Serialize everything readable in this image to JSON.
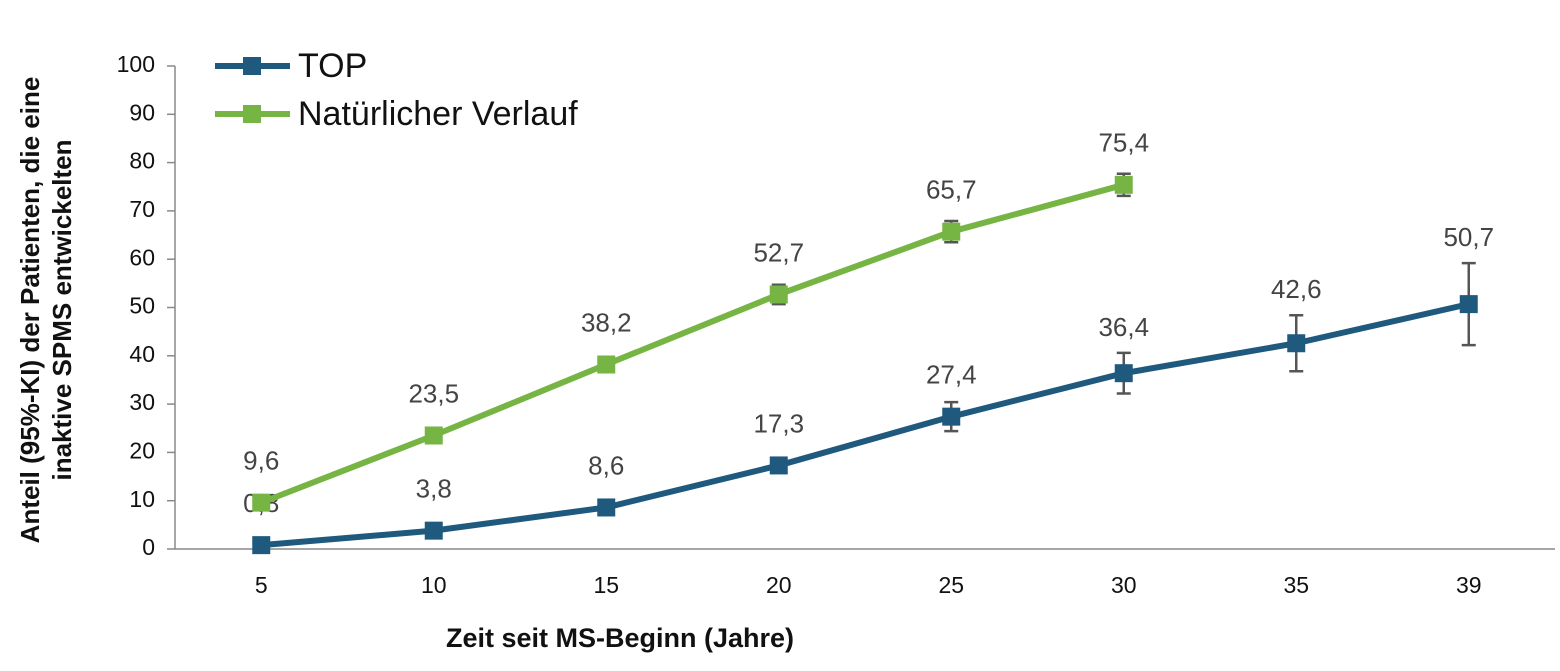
{
  "chart_data": {
    "type": "line",
    "xlabel": "Zeit seit MS-Beginn (Jahre)",
    "ylabel": [
      "Anteil (95%-KI) der Patienten, die eine",
      "inaktive SPMS entwickelten"
    ],
    "categories": [
      "5",
      "10",
      "15",
      "20",
      "25",
      "30",
      "35",
      "39"
    ],
    "series": [
      {
        "name": "TOP",
        "color": "#1f5a7e",
        "values": [
          0.8,
          3.8,
          8.6,
          17.3,
          27.4,
          36.4,
          42.6,
          50.7
        ],
        "value_labels": [
          "0,8",
          "3,8",
          "8,6",
          "17,3",
          "27,4",
          "36,4",
          "42,6",
          "50,7"
        ],
        "errors": [
          0.3,
          0.8,
          1.0,
          1.3,
          3.0,
          4.2,
          5.8,
          8.5
        ]
      },
      {
        "name": "Natürlicher Verlauf",
        "color": "#76b443",
        "values": [
          9.6,
          23.5,
          38.2,
          52.7,
          65.7,
          75.4,
          null,
          null
        ],
        "value_labels": [
          "9,6",
          "23,5",
          "38,2",
          "52,7",
          "65,7",
          "75,4",
          null,
          null
        ],
        "errors": [
          0.5,
          1.0,
          1.5,
          2.0,
          2.2,
          2.3,
          null,
          null
        ]
      }
    ],
    "ylim": [
      0,
      100
    ],
    "yticks": [
      0,
      10,
      20,
      30,
      40,
      50,
      60,
      70,
      80,
      90,
      100
    ],
    "legend": "upper left",
    "error_color": "#555555"
  }
}
